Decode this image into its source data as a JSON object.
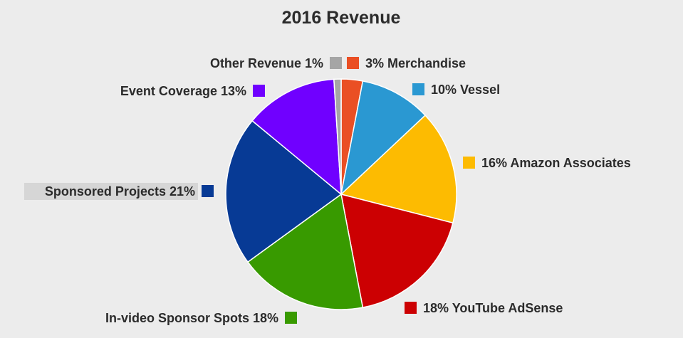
{
  "chart_data": {
    "type": "pie",
    "title": "2016 Revenue",
    "slices": [
      {
        "label": "3% Merchandise",
        "value": 3,
        "color": "#ea4f24"
      },
      {
        "label": "10% Vessel",
        "value": 10,
        "color": "#2a98d2"
      },
      {
        "label": "16% Amazon Associates",
        "value": 16,
        "color": "#fdbb01"
      },
      {
        "label": "18% YouTube AdSense",
        "value": 18,
        "color": "#cc0002"
      },
      {
        "label": "In-video Sponsor Spots 18%",
        "value": 18,
        "color": "#389a00"
      },
      {
        "label": "Sponsored Projects  21%",
        "value": 21,
        "color": "#073a95"
      },
      {
        "label": "Event Coverage 13%",
        "value": 13,
        "color": "#7000ff"
      },
      {
        "label": "Other Revenue 1%",
        "value": 1,
        "color": "#a5a5a5"
      }
    ]
  }
}
